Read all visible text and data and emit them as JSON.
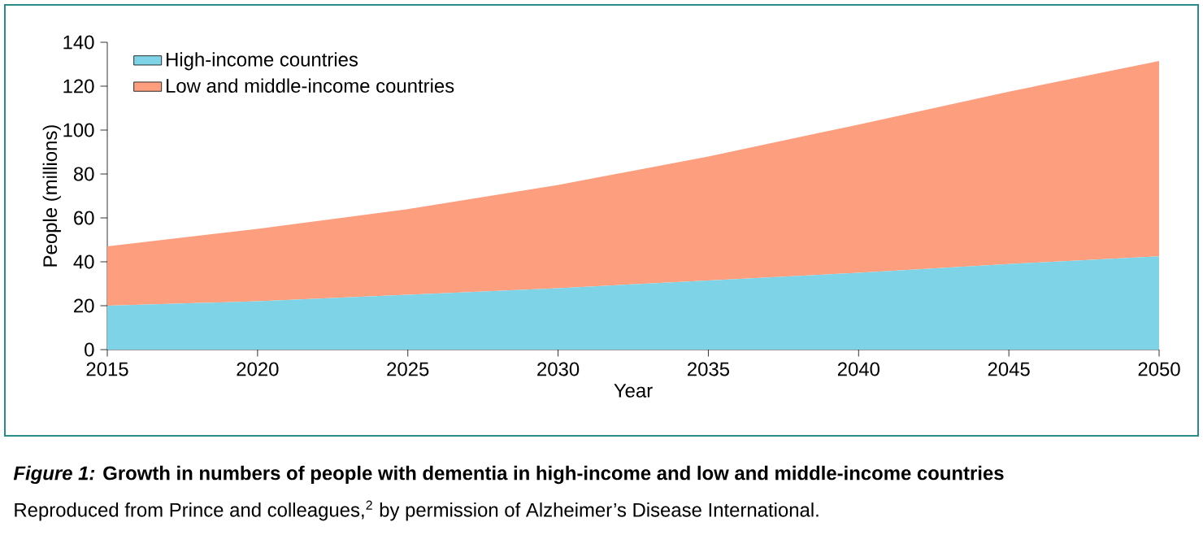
{
  "chart_data": {
    "type": "area",
    "stacked": true,
    "title": "*Figure 1:* Growth in numbers of people with dementia in high-income and low and middle-income countries",
    "subtitle": "Reproduced from Prince and colleagues,$^{2}$ by permission of Alzheimer’s Disease International.",
    "xlabel": "Year",
    "ylabel": "People (millions)",
    "x": [
      2015,
      2020,
      2025,
      2030,
      2035,
      2040,
      2045,
      2050
    ],
    "series": [
      {
        "name": "High-income countries",
        "color": "#7fd3e6",
        "values": [
          20,
          22,
          25,
          28,
          31.5,
          35,
          39,
          42.5
        ]
      },
      {
        "name": "Low and middle-income countries",
        "color": "#fd9e7e",
        "values": [
          27,
          33,
          39,
          47,
          56.5,
          67.5,
          78.5,
          89
        ]
      }
    ],
    "xlim": [
      2015,
      2050
    ],
    "ylim": [
      0,
      140
    ],
    "xticks": [
      2015,
      2020,
      2025,
      2030,
      2035,
      2040,
      2045,
      2050
    ],
    "yticks": [
      0,
      20,
      40,
      60,
      80,
      100,
      120,
      140
    ],
    "legend": "top left"
  }
}
